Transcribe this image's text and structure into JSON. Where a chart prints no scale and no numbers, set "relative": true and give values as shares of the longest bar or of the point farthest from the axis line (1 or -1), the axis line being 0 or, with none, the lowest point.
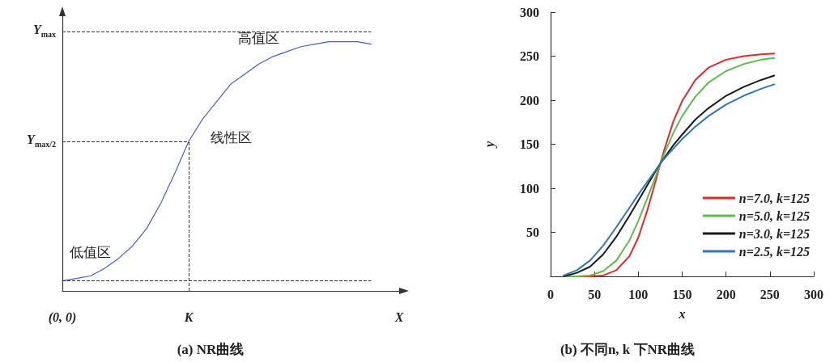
{
  "chart_data": [
    {
      "type": "line",
      "title": "(a) NR曲线",
      "relative": true,
      "color": "#4a5cc8",
      "categories": [
        "(0, 0)",
        null,
        null,
        null,
        null,
        null,
        null,
        null,
        null,
        "K",
        null,
        null,
        null,
        null,
        null,
        null,
        null,
        null,
        null,
        null,
        null,
        null,
        null,
        null,
        "X"
      ],
      "values": [
        0.04,
        0.05,
        0.06,
        0.09,
        0.13,
        0.18,
        0.25,
        0.35,
        0.47,
        0.6,
        0.69,
        0.76,
        0.83,
        0.87,
        0.91,
        0.94,
        0.96,
        0.98,
        0.99,
        1.0,
        1.0,
        1.0,
        0.99,
        null,
        null
      ],
      "ref_lines": [
        {
          "axis": "y",
          "value": 1.04,
          "label": "Y$_{max}$",
          "color": "#333333",
          "line_style": "dashed"
        },
        {
          "axis": "y",
          "value": 0.6,
          "label": "Y$_{max/2}$",
          "color": "#333333",
          "line_style": "dashed"
        },
        {
          "axis": "y",
          "value": 0.04,
          "label": null,
          "color": "#333333",
          "line_style": "dashed"
        },
        {
          "axis": "x",
          "value": "K",
          "label": null,
          "color": "#333333",
          "line_style": "dashed"
        }
      ],
      "annotations": [
        "高值区",
        "线性区",
        "低值区"
      ],
      "grid": false,
      "legend": false,
      "marker": "none"
    },
    {
      "type": "line",
      "title": "(b) 不同n, k 下NR曲线",
      "xlabel": "x",
      "ylabel": "y",
      "x": [
        15,
        30,
        45,
        60,
        75,
        90,
        100,
        110,
        120,
        125,
        130,
        140,
        150,
        165,
        180,
        200,
        220,
        240,
        255
      ],
      "series": [
        {
          "name": "n=7.0, k=125",
          "color": "#e8262a",
          "values": [
            0,
            0,
            0,
            1,
            7,
            23,
            44,
            74,
            109,
            128,
            145,
            176,
            199,
            223,
            237,
            246,
            250,
            252,
            253
          ]
        },
        {
          "name": "n=5.0, k=125",
          "color": "#5cbf4a",
          "values": [
            0,
            0,
            1,
            6,
            18,
            41,
            63,
            88,
            114,
            128,
            140,
            163,
            182,
            204,
            220,
            233,
            241,
            246,
            248
          ]
        },
        {
          "name": "n=3.0, k=125",
          "color": "#1a1a1a",
          "values": [
            0,
            4,
            11,
            25,
            45,
            69,
            86,
            103,
            120,
            128,
            135,
            149,
            161,
            178,
            191,
            205,
            215,
            223,
            228
          ]
        },
        {
          "name": "n=2.5, k=125",
          "color": "#2f77b8",
          "values": [
            1,
            7,
            18,
            35,
            56,
            78,
            93,
            107,
            121,
            128,
            134,
            145,
            156,
            170,
            182,
            195,
            205,
            213,
            218
          ]
        }
      ],
      "xlim": [
        0,
        300
      ],
      "xticks": [
        0,
        50,
        100,
        150,
        200,
        250,
        300
      ],
      "ylim": [
        0,
        300
      ],
      "yticks": [
        {
          "value": 0,
          "label": null
        },
        50,
        100,
        150,
        200,
        250,
        300
      ],
      "grid": false,
      "legend": "bottom right",
      "marker": "none",
      "line_style": "solid"
    }
  ]
}
